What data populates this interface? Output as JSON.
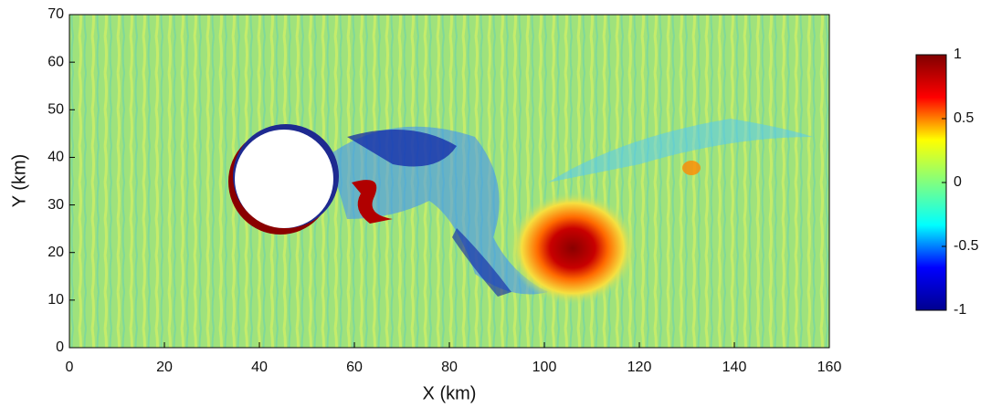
{
  "chart_data": {
    "type": "heatmap",
    "xlabel": "X (km)",
    "ylabel": "Y (km)",
    "xlim": [
      0,
      160
    ],
    "ylim": [
      0,
      70
    ],
    "xticks": [
      0,
      20,
      40,
      60,
      80,
      100,
      120,
      140,
      160
    ],
    "yticks": [
      0,
      10,
      20,
      30,
      40,
      50,
      60,
      70
    ],
    "colorbar": {
      "colormap": "jet",
      "lim": [
        -1,
        1
      ],
      "ticks": [
        1,
        0.5,
        0,
        -0.5,
        -1
      ]
    }
  }
}
